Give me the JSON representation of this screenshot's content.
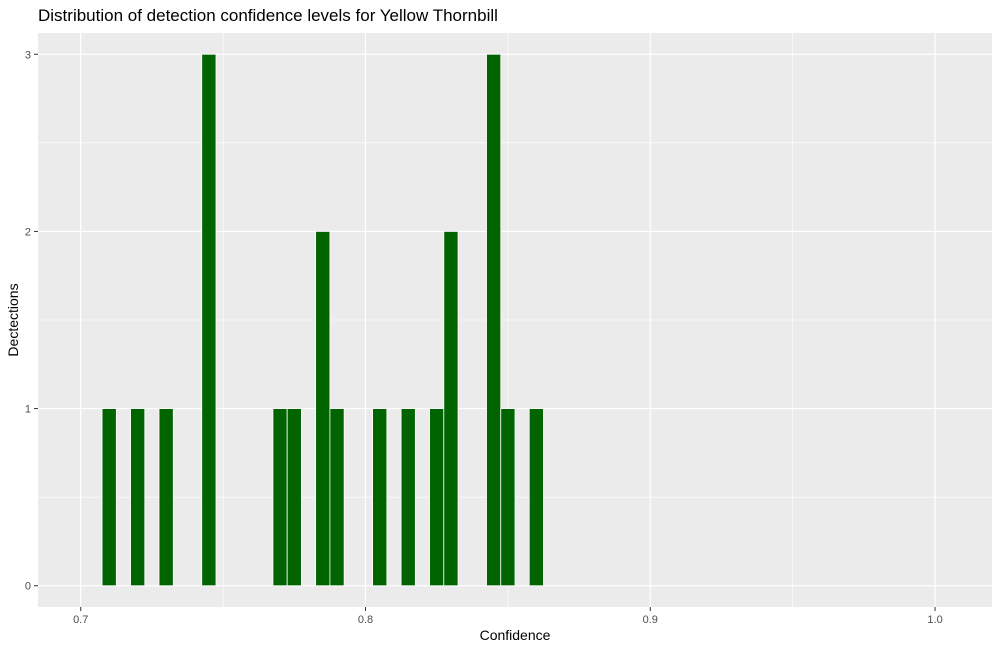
{
  "chart_data": {
    "type": "bar",
    "title": "Distribution of detection confidence levels for Yellow Thornbill",
    "xlabel": "Confidence",
    "ylabel": "Dectections",
    "x": [
      0.71,
      0.72,
      0.73,
      0.745,
      0.77,
      0.775,
      0.785,
      0.79,
      0.805,
      0.815,
      0.825,
      0.83,
      0.845,
      0.85,
      0.86
    ],
    "values": [
      1,
      1,
      1,
      3,
      1,
      1,
      2,
      1,
      1,
      1,
      1,
      2,
      3,
      1,
      1
    ],
    "xlim": [
      0.685,
      1.02
    ],
    "ylim": [
      -0.12,
      3.12
    ],
    "x_ticks": [
      "0.7",
      "0.8",
      "0.9",
      "1.0"
    ],
    "y_ticks": [
      "0",
      "1",
      "2",
      "3"
    ],
    "bar_color": "#006400",
    "panel_background": "#ebebeb",
    "grid_color": "#ffffff",
    "grid": true
  }
}
